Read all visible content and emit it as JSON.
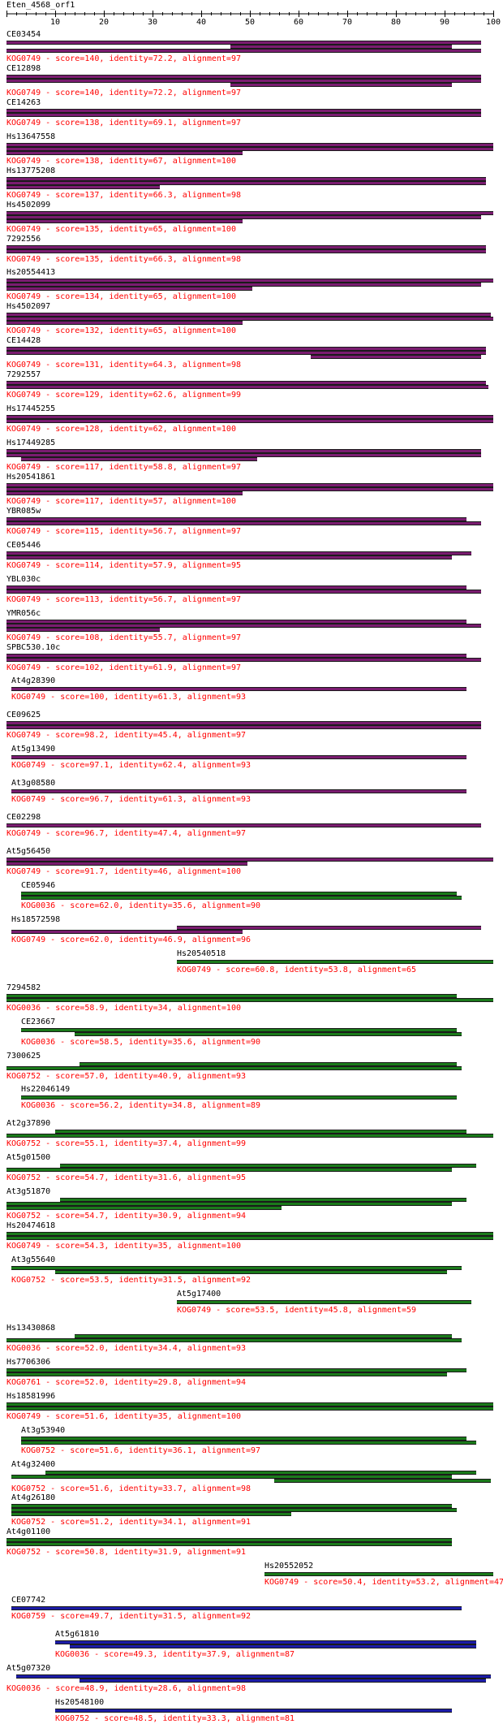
{
  "query": "Eten_4568_orf1",
  "axis": {
    "min": 0,
    "max": 100,
    "tick_labels": [
      "10",
      "20",
      "30",
      "40",
      "50",
      "60",
      "70",
      "80",
      "90",
      "100"
    ]
  },
  "colors": {
    "purple": "#7a1c70",
    "green": "#1a7a1a",
    "blue": "#1c1ca8"
  },
  "hits": [
    {
      "id": "CE03454",
      "kog": "KOG0749",
      "score": "140",
      "identity": "72.2",
      "alignment": "97",
      "color": "purple",
      "segs": [
        [
          0,
          97.5
        ],
        [
          46,
          91.5
        ],
        [
          0,
          97.5
        ]
      ]
    },
    {
      "id": "CE12898",
      "kog": "KOG0749",
      "score": "140",
      "identity": "72.2",
      "alignment": "97",
      "color": "purple",
      "segs": [
        [
          0,
          97.5
        ],
        [
          0,
          97.5
        ],
        [
          46,
          91.5
        ]
      ]
    },
    {
      "id": "CE14263",
      "kog": "KOG0749",
      "score": "138",
      "identity": "69.1",
      "alignment": "97",
      "color": "purple",
      "segs": [
        [
          0,
          97.5
        ],
        [
          0,
          97.5
        ]
      ]
    },
    {
      "id": "Hs13647558",
      "kog": "KOG0749",
      "score": "138",
      "identity": "67",
      "alignment": "100",
      "color": "purple",
      "segs": [
        [
          0,
          100
        ],
        [
          0,
          100
        ],
        [
          0,
          48.5
        ]
      ]
    },
    {
      "id": "Hs13775208",
      "kog": "KOG0749",
      "score": "137",
      "identity": "66.3",
      "alignment": "98",
      "color": "purple",
      "segs": [
        [
          0,
          98.5
        ],
        [
          0,
          98.5
        ],
        [
          0,
          31.5
        ]
      ]
    },
    {
      "id": "Hs4502099",
      "kog": "KOG0749",
      "score": "135",
      "identity": "65",
      "alignment": "100",
      "color": "purple",
      "segs": [
        [
          0,
          100
        ],
        [
          0,
          97.5
        ],
        [
          0,
          48.5
        ]
      ]
    },
    {
      "id": "7292556",
      "kog": "KOG0749",
      "score": "135",
      "identity": "66.3",
      "alignment": "98",
      "color": "purple",
      "segs": [
        [
          0,
          98.5
        ],
        [
          0,
          98.5
        ]
      ]
    },
    {
      "id": "Hs20554413",
      "kog": "KOG0749",
      "score": "134",
      "identity": "65",
      "alignment": "100",
      "color": "purple",
      "segs": [
        [
          0,
          100
        ],
        [
          0,
          97.5
        ],
        [
          0,
          50.5
        ]
      ]
    },
    {
      "id": "Hs4502097",
      "kog": "KOG0749",
      "score": "132",
      "identity": "65",
      "alignment": "100",
      "color": "purple",
      "segs": [
        [
          0,
          99.5
        ],
        [
          0,
          100
        ],
        [
          0,
          48.5
        ]
      ]
    },
    {
      "id": "CE14428",
      "kog": "KOG0749",
      "score": "131",
      "identity": "64.3",
      "alignment": "98",
      "color": "purple",
      "segs": [
        [
          0,
          98.5
        ],
        [
          0,
          98.5
        ],
        [
          62.5,
          97.5
        ]
      ]
    },
    {
      "id": "7292557",
      "kog": "KOG0749",
      "score": "129",
      "identity": "62.6",
      "alignment": "99",
      "color": "purple",
      "segs": [
        [
          0,
          98.5
        ],
        [
          0,
          99
        ]
      ]
    },
    {
      "id": "Hs17445255",
      "kog": "KOG0749",
      "score": "128",
      "identity": "62",
      "alignment": "100",
      "color": "purple",
      "segs": [
        [
          0,
          100
        ],
        [
          0,
          100
        ]
      ]
    },
    {
      "id": "Hs17449285",
      "kog": "KOG0749",
      "score": "117",
      "identity": "58.8",
      "alignment": "97",
      "color": "purple",
      "segs": [
        [
          0,
          97.5
        ],
        [
          0,
          97.5
        ],
        [
          3,
          51.5
        ]
      ]
    },
    {
      "id": "Hs20541861",
      "kog": "KOG0749",
      "score": "117",
      "identity": "57",
      "alignment": "100",
      "color": "purple",
      "segs": [
        [
          0,
          100
        ],
        [
          0,
          100
        ],
        [
          0,
          48.5
        ]
      ]
    },
    {
      "id": "YBR085w",
      "kog": "KOG0749",
      "score": "115",
      "identity": "56.7",
      "alignment": "97",
      "color": "purple",
      "segs": [
        [
          0,
          94.5
        ],
        [
          0,
          97.5
        ]
      ]
    },
    {
      "id": "CE05446",
      "kog": "KOG0749",
      "score": "114",
      "identity": "57.9",
      "alignment": "95",
      "color": "purple",
      "segs": [
        [
          0,
          95.5
        ],
        [
          0,
          91.5
        ]
      ]
    },
    {
      "id": "YBL030c",
      "kog": "KOG0749",
      "score": "113",
      "identity": "56.7",
      "alignment": "97",
      "color": "purple",
      "segs": [
        [
          0,
          94.5
        ],
        [
          0,
          97.5
        ]
      ]
    },
    {
      "id": "YMR056c",
      "kog": "KOG0749",
      "score": "108",
      "identity": "55.7",
      "alignment": "97",
      "color": "purple",
      "segs": [
        [
          0,
          94.5
        ],
        [
          0,
          97.5
        ],
        [
          0,
          31.5
        ]
      ]
    },
    {
      "id": "SPBC530.10c",
      "kog": "KOG0749",
      "score": "102",
      "identity": "61.9",
      "alignment": "97",
      "color": "purple",
      "segs": [
        [
          0,
          94.5
        ],
        [
          0,
          97.5
        ]
      ]
    },
    {
      "id": "At4g28390",
      "kog": "KOG0749",
      "score": "100",
      "identity": "61.3",
      "alignment": "93",
      "color": "purple",
      "indent": 1,
      "segs": [
        [
          1,
          94.5
        ]
      ]
    },
    {
      "id": "CE09625",
      "kog": "KOG0749",
      "score": "98.2",
      "identity": "45.4",
      "alignment": "97",
      "color": "purple",
      "segs": [
        [
          0,
          97.5
        ],
        [
          0,
          97.5
        ]
      ]
    },
    {
      "id": "At5g13490",
      "kog": "KOG0749",
      "score": "97.1",
      "identity": "62.4",
      "alignment": "93",
      "color": "purple",
      "indent": 1,
      "segs": [
        [
          1,
          94.5
        ]
      ]
    },
    {
      "id": "At3g08580",
      "kog": "KOG0749",
      "score": "96.7",
      "identity": "61.3",
      "alignment": "93",
      "color": "purple",
      "indent": 1,
      "segs": [
        [
          1,
          94.5
        ]
      ]
    },
    {
      "id": "CE02298",
      "kog": "KOG0749",
      "score": "96.7",
      "identity": "47.4",
      "alignment": "97",
      "color": "purple",
      "segs": [
        [
          0,
          97.5
        ]
      ]
    },
    {
      "id": "At5g56450",
      "kog": "KOG0749",
      "score": "91.7",
      "identity": "46",
      "alignment": "100",
      "color": "purple",
      "segs": [
        [
          0,
          100
        ],
        [
          0,
          49.5
        ]
      ]
    },
    {
      "id": "CE05946",
      "kog": "KOG0036",
      "score": "62.0",
      "identity": "35.6",
      "alignment": "90",
      "color": "green",
      "indent": 3,
      "segs": [
        [
          3,
          92.5
        ],
        [
          3,
          93.5
        ]
      ]
    },
    {
      "id": "Hs18572598",
      "kog": "KOG0749",
      "score": "62.0",
      "identity": "46.9",
      "alignment": "96",
      "color": "purple",
      "indent": 1,
      "segs": [
        [
          35,
          97.5
        ],
        [
          1,
          48.5
        ]
      ]
    },
    {
      "id": "Hs20540518",
      "kog": "KOG0749",
      "score": "60.8",
      "identity": "53.8",
      "alignment": "65",
      "color": "green",
      "indent": 35,
      "segs": [
        [
          35,
          100
        ]
      ]
    },
    {
      "id": "7294582",
      "kog": "KOG0036",
      "score": "58.9",
      "identity": "34",
      "alignment": "100",
      "color": "green",
      "segs": [
        [
          0,
          92.5
        ],
        [
          0,
          100
        ]
      ]
    },
    {
      "id": "CE23667",
      "kog": "KOG0036",
      "score": "58.5",
      "identity": "35.6",
      "alignment": "90",
      "color": "green",
      "indent": 3,
      "segs": [
        [
          3,
          92.5
        ],
        [
          14,
          93.5
        ]
      ]
    },
    {
      "id": "7300625",
      "kog": "KOG0752",
      "score": "57.0",
      "identity": "40.9",
      "alignment": "93",
      "color": "green",
      "segs": [
        [
          15,
          92.5
        ],
        [
          0,
          93.5
        ]
      ]
    },
    {
      "id": "Hs22046149",
      "kog": "KOG0036",
      "score": "56.2",
      "identity": "34.8",
      "alignment": "89",
      "color": "green",
      "indent": 3,
      "segs": [
        [
          3,
          92.5
        ]
      ]
    },
    {
      "id": "At2g37890",
      "kog": "KOG0752",
      "score": "55.1",
      "identity": "37.4",
      "alignment": "99",
      "color": "green",
      "segs": [
        [
          10,
          94.5
        ],
        [
          0,
          100
        ]
      ]
    },
    {
      "id": "At5g01500",
      "kog": "KOG0752",
      "score": "54.7",
      "identity": "31.6",
      "alignment": "95",
      "color": "green",
      "segs": [
        [
          11,
          96.5
        ],
        [
          0,
          91.5
        ]
      ]
    },
    {
      "id": "At3g51870",
      "kog": "KOG0752",
      "score": "54.7",
      "identity": "30.9",
      "alignment": "94",
      "color": "green",
      "segs": [
        [
          11,
          94.5
        ],
        [
          0,
          91.5
        ],
        [
          0,
          56.5
        ]
      ]
    },
    {
      "id": "Hs20474618",
      "kog": "KOG0749",
      "score": "54.3",
      "identity": "35",
      "alignment": "100",
      "color": "green",
      "segs": [
        [
          0,
          100
        ],
        [
          0,
          100
        ]
      ]
    },
    {
      "id": "At3g55640",
      "kog": "KOG0752",
      "score": "53.5",
      "identity": "31.5",
      "alignment": "92",
      "color": "green",
      "indent": 1,
      "segs": [
        [
          1,
          93.5
        ],
        [
          10,
          90.5
        ]
      ]
    },
    {
      "id": "At5g17400",
      "kog": "KOG0749",
      "score": "53.5",
      "identity": "45.8",
      "alignment": "59",
      "color": "green",
      "indent": 35,
      "segs": [
        [
          35,
          95.5
        ]
      ]
    },
    {
      "id": "Hs13430868",
      "kog": "KOG0036",
      "score": "52.0",
      "identity": "34.4",
      "alignment": "93",
      "color": "green",
      "segs": [
        [
          14,
          91.5
        ],
        [
          0,
          93.5
        ]
      ]
    },
    {
      "id": "Hs7706306",
      "kog": "KOG0761",
      "score": "52.0",
      "identity": "29.8",
      "alignment": "94",
      "color": "green",
      "segs": [
        [
          0,
          94.5
        ],
        [
          0,
          90.5
        ]
      ]
    },
    {
      "id": "Hs18581996",
      "kog": "KOG0749",
      "score": "51.6",
      "identity": "35",
      "alignment": "100",
      "color": "green",
      "segs": [
        [
          0,
          100
        ],
        [
          0,
          100
        ]
      ]
    },
    {
      "id": "At3g53940",
      "kog": "KOG0752",
      "score": "51.6",
      "identity": "36.1",
      "alignment": "97",
      "color": "green",
      "indent": 3,
      "segs": [
        [
          3,
          94.5
        ],
        [
          3,
          96.5
        ]
      ]
    },
    {
      "id": "At4g32400",
      "kog": "KOG0752",
      "score": "51.6",
      "identity": "33.7",
      "alignment": "98",
      "color": "green",
      "indent": 1,
      "segs": [
        [
          8,
          96.5
        ],
        [
          1,
          91.5
        ],
        [
          55,
          99.5
        ]
      ]
    },
    {
      "id": "At4g26180",
      "kog": "KOG0752",
      "score": "51.2",
      "identity": "34.1",
      "alignment": "91",
      "color": "green",
      "indent": 1,
      "segs": [
        [
          1,
          91.5
        ],
        [
          1,
          92.5
        ],
        [
          1,
          58.5
        ]
      ]
    },
    {
      "id": "At4g01100",
      "kog": "KOG0752",
      "score": "50.8",
      "identity": "31.9",
      "alignment": "91",
      "color": "green",
      "segs": [
        [
          0,
          91.5
        ],
        [
          0,
          91.5
        ]
      ]
    },
    {
      "id": "Hs20552052",
      "kog": "KOG0749",
      "score": "50.4",
      "identity": "53.2",
      "alignment": "47",
      "color": "green",
      "indent": 53,
      "segs": [
        [
          53,
          100
        ]
      ]
    },
    {
      "id": "CE07742",
      "kog": "KOG0759",
      "score": "49.7",
      "identity": "31.5",
      "alignment": "92",
      "color": "blue",
      "indent": 1,
      "segs": [
        [
          1,
          93.5
        ]
      ]
    },
    {
      "id": "At5g61810",
      "kog": "KOG0036",
      "score": "49.3",
      "identity": "37.9",
      "alignment": "87",
      "color": "blue",
      "indent": 10,
      "segs": [
        [
          10,
          96.5
        ],
        [
          13,
          96.5
        ]
      ]
    },
    {
      "id": "At5g07320",
      "kog": "KOG0036",
      "score": "48.9",
      "identity": "28.6",
      "alignment": "98",
      "color": "blue",
      "segs": [
        [
          2,
          99.5
        ],
        [
          15,
          98.5
        ]
      ]
    },
    {
      "id": "Hs20548100",
      "kog": "KOG0752",
      "score": "48.5",
      "identity": "33.3",
      "alignment": "81",
      "color": "blue",
      "indent": 10,
      "segs": [
        [
          10,
          91.5
        ]
      ]
    }
  ]
}
